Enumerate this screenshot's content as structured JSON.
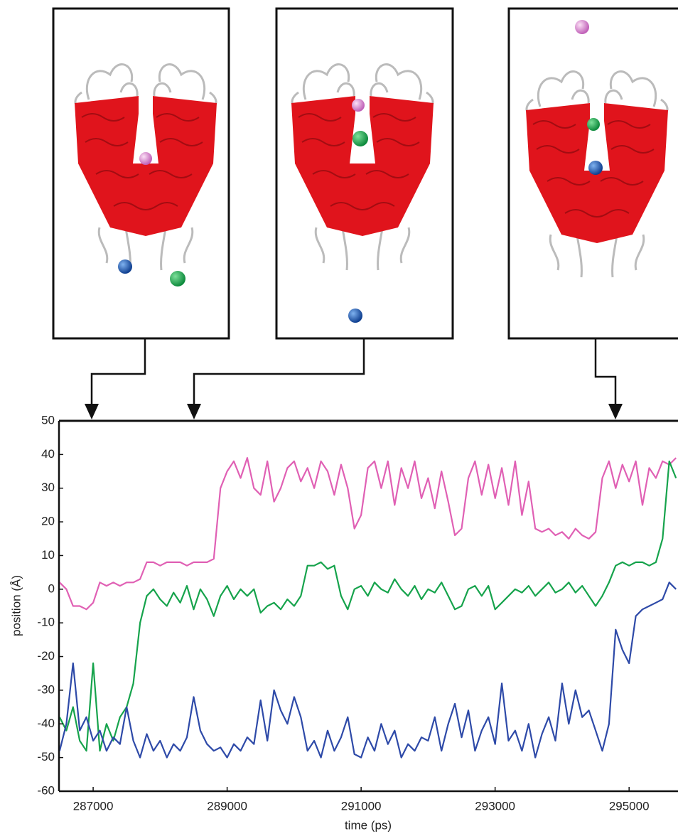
{
  "chart_data": {
    "type": "line",
    "xlabel": "time (ps)",
    "ylabel": "position (Å)",
    "xlim": [
      286490,
      295730
    ],
    "ylim": [
      -60,
      50
    ],
    "xticks": [
      287000,
      289000,
      291000,
      293000,
      295000
    ],
    "yticks": [
      -60,
      -50,
      -40,
      -30,
      -20,
      -10,
      0,
      10,
      20,
      30,
      40,
      50
    ],
    "x": [
      286500,
      286600,
      286700,
      286800,
      286900,
      287000,
      287100,
      287200,
      287300,
      287400,
      287500,
      287600,
      287700,
      287800,
      287900,
      288000,
      288100,
      288200,
      288300,
      288400,
      288500,
      288600,
      288700,
      288800,
      288900,
      289000,
      289100,
      289200,
      289300,
      289400,
      289500,
      289600,
      289700,
      289800,
      289900,
      290000,
      290100,
      290200,
      290300,
      290400,
      290500,
      290600,
      290700,
      290800,
      290900,
      291000,
      291100,
      291200,
      291300,
      291400,
      291500,
      291600,
      291700,
      291800,
      291900,
      292000,
      292100,
      292200,
      292300,
      292400,
      292500,
      292600,
      292700,
      292800,
      292900,
      293000,
      293100,
      293200,
      293300,
      293400,
      293500,
      293600,
      293700,
      293800,
      293900,
      294000,
      294100,
      294200,
      294300,
      294400,
      294500,
      294600,
      294700,
      294800,
      294900,
      295000,
      295100,
      295200,
      295300,
      295400,
      295500,
      295600,
      295700
    ],
    "series": [
      {
        "color": "#e060b4",
        "values": [
          2,
          0,
          -5,
          -5,
          -6,
          -4,
          2,
          1,
          2,
          1,
          2,
          2,
          3,
          8,
          8,
          7,
          8,
          8,
          8,
          7,
          8,
          8,
          8,
          9,
          30,
          35,
          38,
          33,
          39,
          30,
          28,
          38,
          26,
          30,
          36,
          38,
          32,
          36,
          30,
          38,
          35,
          28,
          37,
          30,
          18,
          22,
          36,
          38,
          30,
          38,
          25,
          36,
          30,
          38,
          27,
          33,
          24,
          35,
          26,
          16,
          18,
          33,
          38,
          28,
          37,
          27,
          36,
          25,
          38,
          22,
          32,
          18,
          17,
          18,
          16,
          17,
          15,
          18,
          16,
          15,
          17,
          33,
          38,
          30,
          37,
          32,
          38,
          25,
          36,
          33,
          38,
          37,
          39
        ]
      },
      {
        "color": "#16a34c",
        "values": [
          -38,
          -42,
          -35,
          -45,
          -48,
          -22,
          -48,
          -40,
          -45,
          -38,
          -35,
          -28,
          -10,
          -2,
          0,
          -3,
          -5,
          -1,
          -4,
          1,
          -6,
          0,
          -3,
          -8,
          -2,
          1,
          -3,
          0,
          -2,
          0,
          -7,
          -5,
          -4,
          -6,
          -3,
          -5,
          -2,
          7,
          7,
          8,
          6,
          7,
          -2,
          -6,
          0,
          1,
          -2,
          2,
          0,
          -1,
          3,
          0,
          -2,
          1,
          -3,
          0,
          -1,
          2,
          -2,
          -6,
          -5,
          0,
          1,
          -2,
          1,
          -6,
          -4,
          -2,
          0,
          -1,
          1,
          -2,
          0,
          2,
          -1,
          0,
          2,
          -1,
          1,
          -2,
          -5,
          -2,
          2,
          7,
          8,
          7,
          8,
          8,
          7,
          8,
          15,
          38,
          33
        ]
      },
      {
        "color": "#2e4aa8",
        "values": [
          -48,
          -40,
          -22,
          -42,
          -38,
          -45,
          -42,
          -48,
          -44,
          -46,
          -35,
          -45,
          -50,
          -43,
          -48,
          -45,
          -50,
          -46,
          -48,
          -44,
          -32,
          -42,
          -46,
          -48,
          -47,
          -50,
          -46,
          -48,
          -44,
          -46,
          -33,
          -45,
          -30,
          -36,
          -40,
          -32,
          -38,
          -48,
          -45,
          -50,
          -42,
          -48,
          -44,
          -38,
          -49,
          -50,
          -44,
          -48,
          -40,
          -46,
          -42,
          -50,
          -46,
          -48,
          -44,
          -45,
          -38,
          -48,
          -40,
          -34,
          -44,
          -36,
          -48,
          -42,
          -38,
          -46,
          -28,
          -45,
          -42,
          -48,
          -40,
          -50,
          -43,
          -38,
          -45,
          -28,
          -40,
          -30,
          -38,
          -36,
          -42,
          -48,
          -40,
          -12,
          -18,
          -22,
          -8,
          -6,
          -5,
          -4,
          -3,
          2,
          0
        ]
      }
    ]
  }
}
